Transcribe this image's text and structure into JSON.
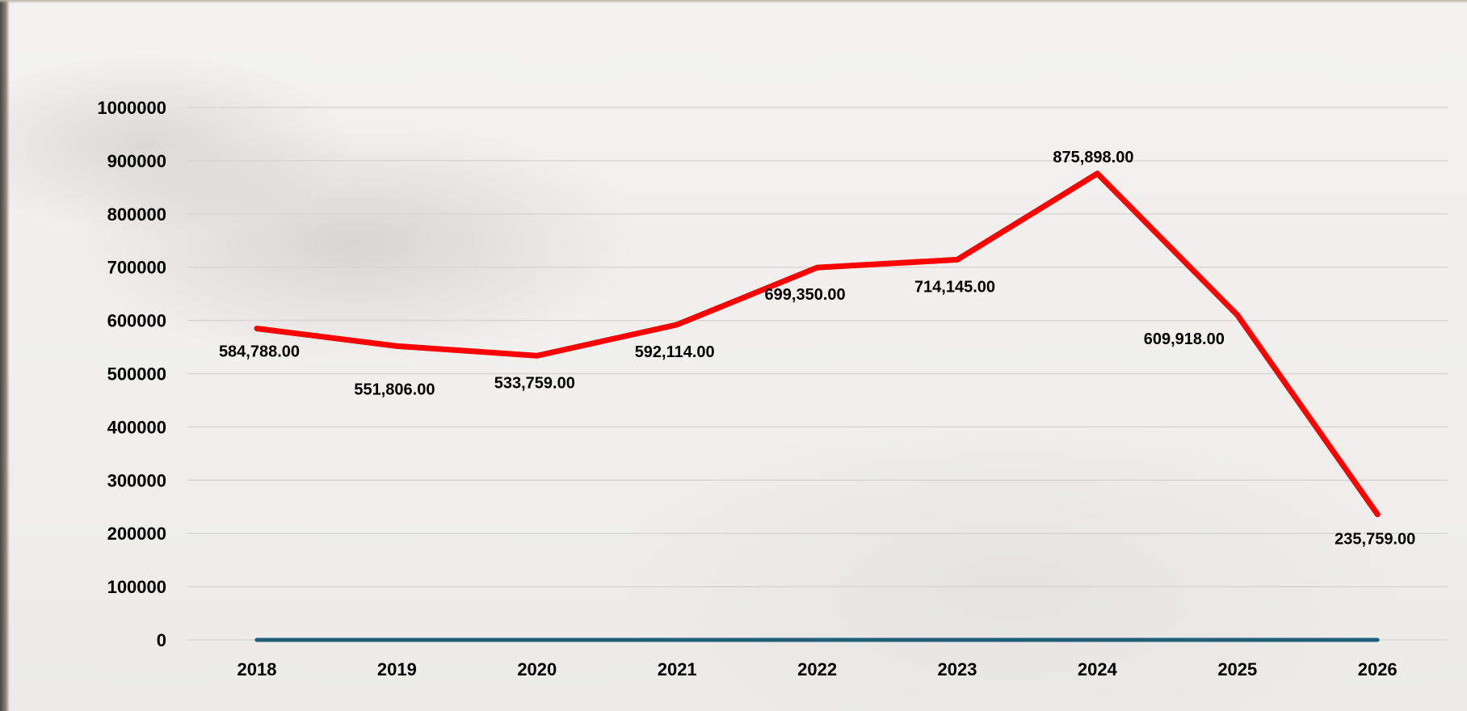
{
  "chart_data": {
    "type": "line",
    "title": "",
    "xlabel": "",
    "ylabel": "",
    "categories": [
      "2018",
      "2019",
      "2020",
      "2021",
      "2022",
      "2023",
      "2024",
      "2025",
      "2026"
    ],
    "y_ticks": [
      "0",
      "100000",
      "200000",
      "300000",
      "400000",
      "500000",
      "600000",
      "700000",
      "800000",
      "900000",
      "1000000"
    ],
    "ylim": [
      0,
      1000000
    ],
    "grid": true,
    "legend": "none",
    "series": [
      {
        "color": "#ff0000",
        "values": [
          584788,
          551806,
          533759,
          592114,
          699350,
          714145,
          875898,
          609918,
          235759
        ],
        "data_labels": [
          "584,788.00",
          "551,806.00",
          "533,759.00",
          "592,114.00",
          "699,350.00",
          "714,145.00",
          "875,898.00",
          "609,918.00",
          "235,759.00"
        ]
      },
      {
        "color": "#1f5f7a",
        "values": [
          0,
          0,
          0,
          0,
          0,
          0,
          0,
          0,
          0
        ]
      }
    ]
  }
}
